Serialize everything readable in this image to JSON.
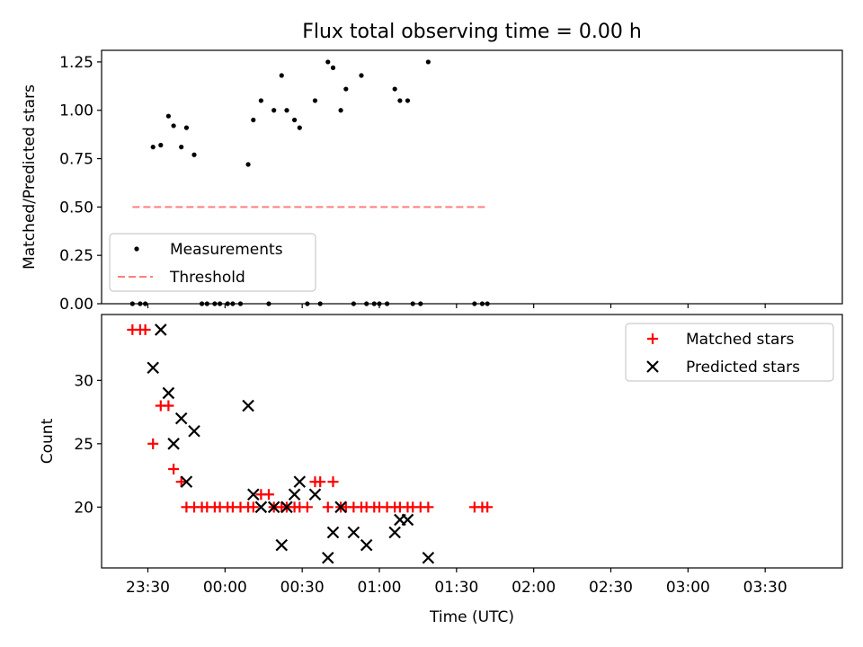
{
  "figure": {
    "title": "Flux total observing time = 0.00 h",
    "xlabel": "Time (UTC)",
    "xticks": [
      {
        "t": "23:30",
        "label": "23:30"
      },
      {
        "t": "00:00",
        "label": "00:00"
      },
      {
        "t": "00:30",
        "label": "00:30"
      },
      {
        "t": "01:00",
        "label": "01:00"
      },
      {
        "t": "01:30",
        "label": "01:30"
      },
      {
        "t": "02:00",
        "label": "02:00"
      },
      {
        "t": "02:30",
        "label": "02:30"
      },
      {
        "t": "03:00",
        "label": "03:00"
      },
      {
        "t": "03:30",
        "label": "03:30"
      }
    ]
  },
  "colors": {
    "measurement": "#000000",
    "threshold": "#ff7f7f",
    "matched": "#ff0000",
    "predicted": "#000000"
  },
  "chart_data": [
    {
      "type": "scatter",
      "ylabel": "Matched/Predicted stars",
      "xlim": [
        "23:12",
        "04:00"
      ],
      "ylim": [
        0,
        1.31
      ],
      "yticks": [
        0.0,
        0.25,
        0.5,
        0.75,
        1.0,
        1.25
      ],
      "ytick_labels": [
        "0.00",
        "0.25",
        "0.50",
        "0.75",
        "1.00",
        "1.25"
      ],
      "legend": {
        "loc": "lower-left",
        "entries": [
          {
            "label": "Measurements",
            "series": "measurements"
          },
          {
            "label": "Threshold",
            "series": "threshold"
          }
        ]
      },
      "series": [
        {
          "key": "measurements",
          "name": "Measurements",
          "marker": "dot",
          "points": [
            [
              "23:24",
              0.0
            ],
            [
              "23:27",
              0.0
            ],
            [
              "23:29",
              0.0
            ],
            [
              "23:32",
              0.81
            ],
            [
              "23:35",
              0.82
            ],
            [
              "23:38",
              0.97
            ],
            [
              "23:40",
              0.92
            ],
            [
              "23:43",
              0.81
            ],
            [
              "23:45",
              0.91
            ],
            [
              "23:48",
              0.77
            ],
            [
              "23:51",
              0.0
            ],
            [
              "23:53",
              0.0
            ],
            [
              "23:56",
              0.0
            ],
            [
              "23:58",
              0.0
            ],
            [
              "00:01",
              0.0
            ],
            [
              "00:03",
              0.0
            ],
            [
              "00:06",
              0.0
            ],
            [
              "00:09",
              0.72
            ],
            [
              "00:11",
              0.95
            ],
            [
              "00:14",
              1.05
            ],
            [
              "00:17",
              0.0
            ],
            [
              "00:19",
              1.0
            ],
            [
              "00:22",
              1.18
            ],
            [
              "00:24",
              1.0
            ],
            [
              "00:27",
              0.95
            ],
            [
              "00:29",
              0.91
            ],
            [
              "00:32",
              0.0
            ],
            [
              "00:35",
              1.05
            ],
            [
              "00:37",
              0.0
            ],
            [
              "00:40",
              1.25
            ],
            [
              "00:42",
              1.22
            ],
            [
              "00:45",
              1.0
            ],
            [
              "00:47",
              1.11
            ],
            [
              "00:50",
              0.0
            ],
            [
              "00:53",
              1.18
            ],
            [
              "00:55",
              0.0
            ],
            [
              "00:58",
              0.0
            ],
            [
              "01:00",
              0.0
            ],
            [
              "01:03",
              0.0
            ],
            [
              "01:06",
              1.11
            ],
            [
              "01:08",
              1.05
            ],
            [
              "01:11",
              1.05
            ],
            [
              "01:13",
              0.0
            ],
            [
              "01:16",
              0.0
            ],
            [
              "01:19",
              1.25
            ],
            [
              "01:37",
              0.0
            ],
            [
              "01:40",
              0.0
            ],
            [
              "01:42",
              0.0
            ]
          ]
        },
        {
          "key": "threshold",
          "name": "Threshold",
          "line": "dashed",
          "points": [
            [
              "23:24",
              0.5
            ],
            [
              "01:42",
              0.5
            ]
          ]
        }
      ]
    },
    {
      "type": "scatter",
      "ylabel": "Count",
      "xlabel": "Time (UTC)",
      "xlim": [
        "23:12",
        "04:00"
      ],
      "ylim": [
        15.2,
        35.2
      ],
      "yticks": [
        20,
        25,
        30
      ],
      "ytick_labels": [
        "20",
        "25",
        "30"
      ],
      "legend": {
        "loc": "upper-right",
        "entries": [
          {
            "label": "Matched stars",
            "series": "matched"
          },
          {
            "label": "Predicted stars",
            "series": "predicted"
          }
        ]
      },
      "series": [
        {
          "key": "matched",
          "name": "Matched stars",
          "marker": "plus",
          "points": [
            [
              "23:24",
              34
            ],
            [
              "23:27",
              34
            ],
            [
              "23:29",
              34
            ],
            [
              "23:32",
              25
            ],
            [
              "23:35",
              28
            ],
            [
              "23:38",
              28
            ],
            [
              "23:40",
              23
            ],
            [
              "23:43",
              22
            ],
            [
              "23:45",
              20
            ],
            [
              "23:48",
              20
            ],
            [
              "23:51",
              20
            ],
            [
              "23:53",
              20
            ],
            [
              "23:56",
              20
            ],
            [
              "23:58",
              20
            ],
            [
              "00:01",
              20
            ],
            [
              "00:03",
              20
            ],
            [
              "00:06",
              20
            ],
            [
              "00:09",
              20
            ],
            [
              "00:11",
              20
            ],
            [
              "00:14",
              21
            ],
            [
              "00:17",
              21
            ],
            [
              "00:19",
              20
            ],
            [
              "00:22",
              20
            ],
            [
              "00:24",
              20
            ],
            [
              "00:27",
              20
            ],
            [
              "00:29",
              20
            ],
            [
              "00:32",
              20
            ],
            [
              "00:35",
              22
            ],
            [
              "00:37",
              22
            ],
            [
              "00:40",
              20
            ],
            [
              "00:42",
              22
            ],
            [
              "00:45",
              20
            ],
            [
              "00:47",
              20
            ],
            [
              "00:50",
              20
            ],
            [
              "00:53",
              20
            ],
            [
              "00:55",
              20
            ],
            [
              "00:58",
              20
            ],
            [
              "01:00",
              20
            ],
            [
              "01:03",
              20
            ],
            [
              "01:06",
              20
            ],
            [
              "01:08",
              20
            ],
            [
              "01:11",
              20
            ],
            [
              "01:13",
              20
            ],
            [
              "01:16",
              20
            ],
            [
              "01:19",
              20
            ],
            [
              "01:37",
              20
            ],
            [
              "01:40",
              20
            ],
            [
              "01:42",
              20
            ]
          ]
        },
        {
          "key": "predicted",
          "name": "Predicted stars",
          "marker": "x",
          "points": [
            [
              "23:32",
              31
            ],
            [
              "23:35",
              34
            ],
            [
              "23:38",
              29
            ],
            [
              "23:40",
              25
            ],
            [
              "23:43",
              27
            ],
            [
              "23:45",
              22
            ],
            [
              "23:48",
              26
            ],
            [
              "00:09",
              28
            ],
            [
              "00:11",
              21
            ],
            [
              "00:14",
              20
            ],
            [
              "00:19",
              20
            ],
            [
              "00:22",
              17
            ],
            [
              "00:24",
              20
            ],
            [
              "00:27",
              21
            ],
            [
              "00:29",
              22
            ],
            [
              "00:35",
              21
            ],
            [
              "00:40",
              16
            ],
            [
              "00:42",
              18
            ],
            [
              "00:45",
              20
            ],
            [
              "00:50",
              18
            ],
            [
              "00:55",
              17
            ],
            [
              "01:06",
              18
            ],
            [
              "01:08",
              19
            ],
            [
              "01:11",
              19
            ],
            [
              "01:19",
              16
            ]
          ]
        }
      ]
    }
  ]
}
